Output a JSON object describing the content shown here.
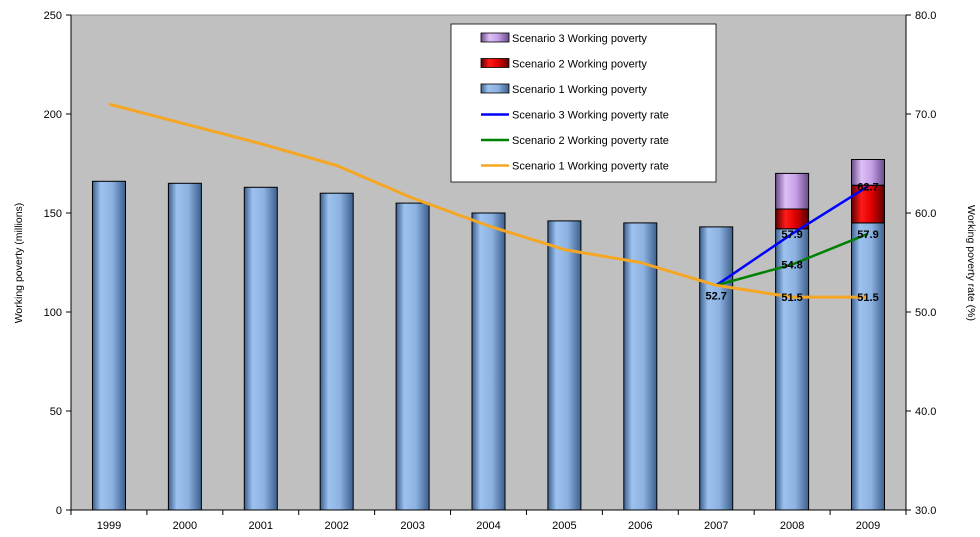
{
  "chart_data": {
    "type": "bar",
    "categories": [
      "1999",
      "2000",
      "2001",
      "2002",
      "2003",
      "2004",
      "2005",
      "2006",
      "2007",
      "2008",
      "2009"
    ],
    "ylabel": "Working poverty (millions)",
    "y2label": "Working poverty rate (%)",
    "ylim": [
      0,
      250
    ],
    "y2lim": [
      30,
      80
    ],
    "yticks": [
      "0",
      "50",
      "100",
      "150",
      "200",
      "250"
    ],
    "y2ticks": [
      "30.0",
      "40.0",
      "50.0",
      "60.0",
      "70.0",
      "80.0"
    ],
    "plot_background": "#c0c0c0",
    "legend_position": "top-right (inside)",
    "bar_series": [
      {
        "name": "Scenario 1 Working poverty",
        "color": "#8fb4e3",
        "values": [
          166,
          165,
          163,
          160,
          155,
          150,
          146,
          145,
          143,
          142,
          145
        ]
      },
      {
        "name": "Scenario 2 Working poverty",
        "color": "#e00000",
        "values": [
          null,
          null,
          null,
          null,
          null,
          null,
          null,
          null,
          null,
          10,
          19
        ]
      },
      {
        "name": "Scenario 3 Working poverty",
        "color": "#c8a2e8",
        "values": [
          null,
          null,
          null,
          null,
          null,
          null,
          null,
          null,
          null,
          18,
          13
        ]
      }
    ],
    "line_series": [
      {
        "name": "Scenario 3 Working poverty rate",
        "color": "#0000ff",
        "axis": "right",
        "values": [
          null,
          null,
          null,
          null,
          null,
          null,
          null,
          null,
          52.7,
          57.9,
          62.7
        ]
      },
      {
        "name": "Scenario 2 Working poverty rate",
        "color": "#008000",
        "axis": "right",
        "values": [
          null,
          null,
          null,
          null,
          null,
          null,
          null,
          null,
          52.7,
          54.8,
          57.9
        ]
      },
      {
        "name": "Scenario 1 Working poverty rate",
        "color": "#f5a623",
        "axis": "right",
        "values": [
          71.0,
          69.0,
          67.0,
          64.8,
          61.5,
          58.7,
          56.3,
          55.0,
          52.7,
          51.5,
          51.5
        ]
      }
    ],
    "data_labels": [
      {
        "category": "2007",
        "value": 52.7,
        "text": "52.7"
      },
      {
        "category": "2008",
        "value": 51.5,
        "text": "51.5"
      },
      {
        "category": "2008",
        "value": 54.8,
        "text": "54.8"
      },
      {
        "category": "2008",
        "value": 57.9,
        "text": "57.9"
      },
      {
        "category": "2009",
        "value": 51.5,
        "text": "51.5"
      },
      {
        "category": "2009",
        "value": 57.9,
        "text": "57.9"
      },
      {
        "category": "2009",
        "value": 62.7,
        "text": "62.7"
      }
    ],
    "legend": [
      {
        "label": "Scenario 3 Working poverty",
        "kind": "bar",
        "color": "#c8a2e8"
      },
      {
        "label": "Scenario 2 Working poverty",
        "kind": "bar",
        "color": "#e00000"
      },
      {
        "label": "Scenario 1 Working poverty",
        "kind": "bar",
        "color": "#8fb4e3"
      },
      {
        "label": "Scenario 3 Working poverty rate",
        "kind": "line",
        "color": "#0000ff"
      },
      {
        "label": "Scenario 2 Working poverty rate",
        "kind": "line",
        "color": "#008000"
      },
      {
        "label": "Scenario 1 Working poverty rate",
        "kind": "line",
        "color": "#f5a623"
      }
    ]
  }
}
